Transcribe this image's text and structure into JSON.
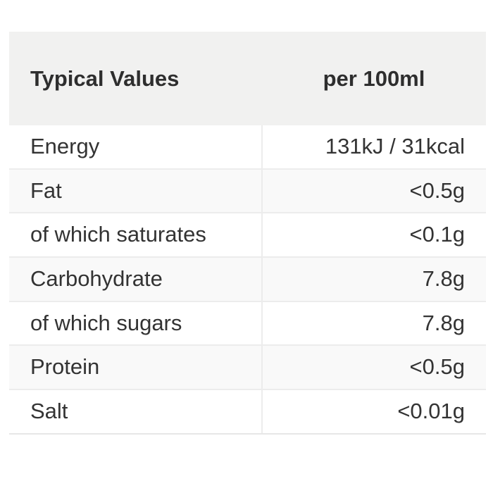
{
  "table": {
    "header": {
      "col1": "Typical Values",
      "col2": "per 100ml"
    },
    "rows": [
      {
        "label": "Energy",
        "value": "131kJ / 31kcal"
      },
      {
        "label": "Fat",
        "value": "<0.5g"
      },
      {
        "label": "of which saturates",
        "value": "<0.1g"
      },
      {
        "label": "Carbohydrate",
        "value": "7.8g"
      },
      {
        "label": "of which sugars",
        "value": "7.8g"
      },
      {
        "label": "Protein",
        "value": "<0.5g"
      },
      {
        "label": "Salt",
        "value": "<0.01g"
      }
    ],
    "colors": {
      "header_bg": "#f1f1f0",
      "row_alt_bg": "#f9f9f9",
      "divider": "#ececec",
      "text": "#333333"
    }
  }
}
